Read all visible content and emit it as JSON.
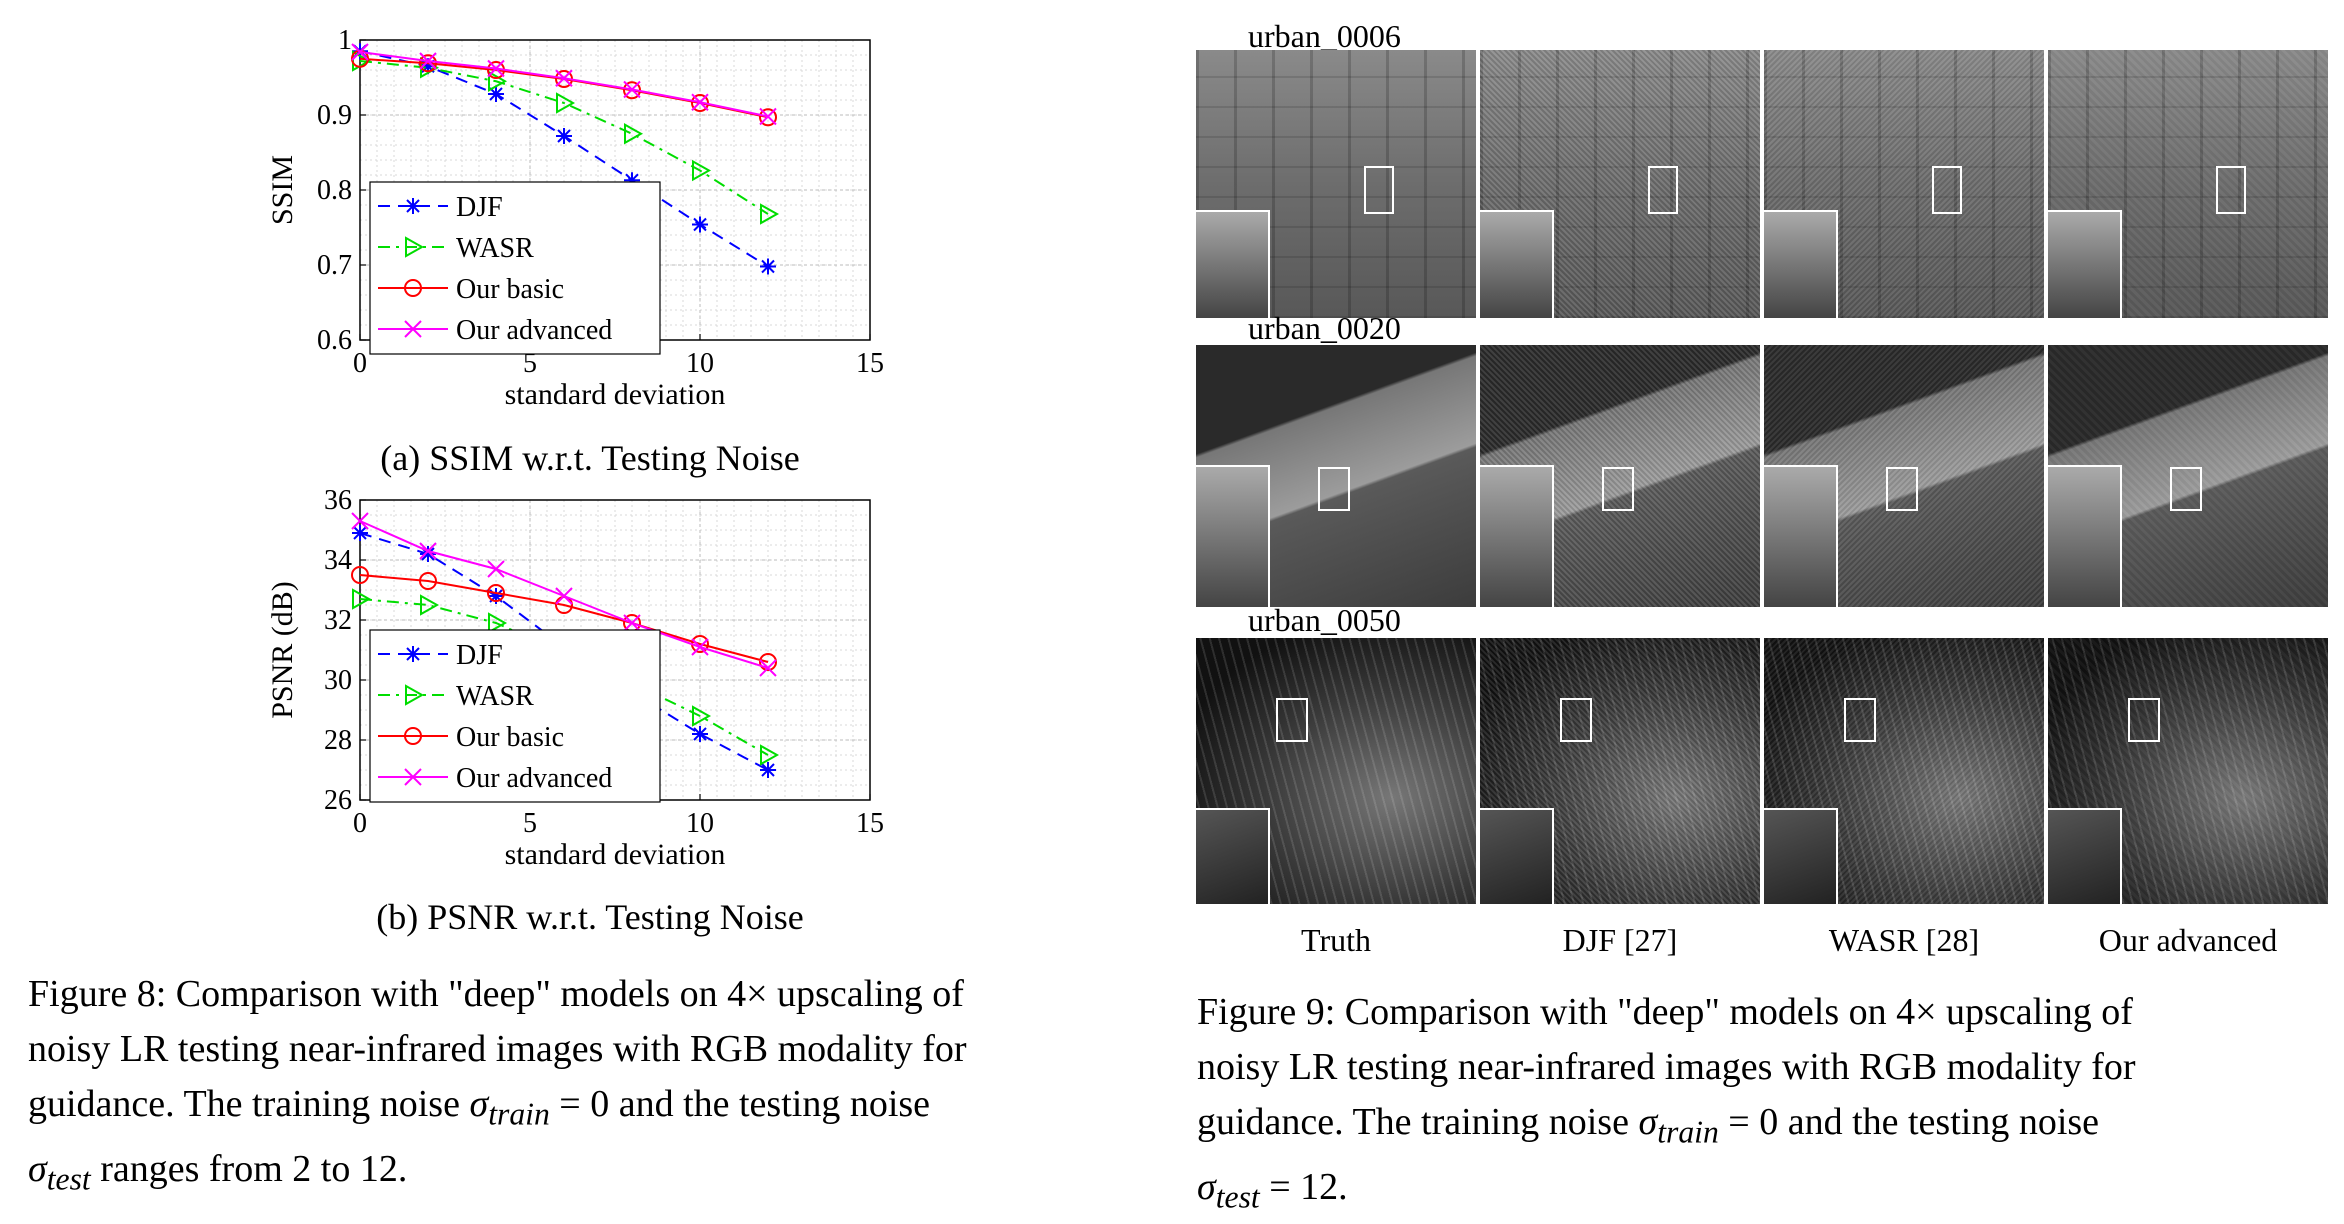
{
  "chart_data": [
    {
      "type": "line",
      "title": "",
      "xlabel": "standard deviation",
      "ylabel": "SSIM",
      "xlim": [
        0,
        15
      ],
      "ylim": [
        0.6,
        1
      ],
      "xticks": [
        "0",
        "5",
        "10",
        "15"
      ],
      "yticks": [
        "0.6",
        "0.7",
        "0.8",
        "0.9",
        "1"
      ],
      "grid": true,
      "legend_position": "bottom-left",
      "x": [
        0,
        2,
        4,
        6,
        8,
        10,
        12
      ],
      "series": [
        {
          "name": "DJF",
          "color": "#0000ff",
          "marker": "asterisk",
          "dash": "dashed",
          "values": [
            0.985,
            0.965,
            0.928,
            0.872,
            0.813,
            0.754,
            0.698
          ]
        },
        {
          "name": "WASR",
          "color": "#00dd00",
          "marker": "triangle-right",
          "dash": "dash-dot",
          "values": [
            0.972,
            0.963,
            0.945,
            0.916,
            0.875,
            0.826,
            0.768
          ]
        },
        {
          "name": "Our basic",
          "color": "#ff0000",
          "marker": "circle",
          "dash": "solid",
          "values": [
            0.975,
            0.969,
            0.96,
            0.948,
            0.933,
            0.916,
            0.897
          ]
        },
        {
          "name": "Our advanced",
          "color": "#ff00ff",
          "marker": "x",
          "dash": "solid",
          "values": [
            0.984,
            0.972,
            0.962,
            0.949,
            0.934,
            0.917,
            0.898
          ]
        }
      ]
    },
    {
      "type": "line",
      "title": "",
      "xlabel": "standard deviation",
      "ylabel": "PSNR (dB)",
      "xlim": [
        0,
        15
      ],
      "ylim": [
        26,
        36
      ],
      "xticks": [
        "0",
        "5",
        "10",
        "15"
      ],
      "yticks": [
        "26",
        "28",
        "30",
        "32",
        "34",
        "36"
      ],
      "grid": true,
      "legend_position": "bottom-left",
      "x": [
        0,
        2,
        4,
        6,
        8,
        10,
        12
      ],
      "series": [
        {
          "name": "DJF",
          "color": "#0000ff",
          "marker": "asterisk",
          "dash": "dashed",
          "values": [
            34.9,
            34.2,
            32.8,
            31.1,
            29.6,
            28.2,
            27.0
          ]
        },
        {
          "name": "WASR",
          "color": "#00dd00",
          "marker": "triangle-right",
          "dash": "dash-dot",
          "values": [
            32.7,
            32.5,
            31.9,
            30.9,
            29.9,
            28.8,
            27.5
          ]
        },
        {
          "name": "Our basic",
          "color": "#ff0000",
          "marker": "circle",
          "dash": "solid",
          "values": [
            33.5,
            33.3,
            32.9,
            32.5,
            31.9,
            31.2,
            30.6
          ]
        },
        {
          "name": "Our advanced",
          "color": "#ff00ff",
          "marker": "x",
          "dash": "solid",
          "values": [
            35.3,
            34.3,
            33.7,
            32.8,
            31.9,
            31.1,
            30.4
          ]
        }
      ]
    }
  ],
  "left": {
    "subcaption_a": "(a) SSIM w.r.t. Testing Noise",
    "subcaption_b": "(b) PSNR w.r.t. Testing Noise",
    "caption_lines": [
      "Figure 8: Comparison with \"deep\" models on 4× upscaling of",
      "noisy LR testing near-infrared images with RGB modality for",
      "guidance. The training noise σ",
      "σ",
      " ranges from 2 to 12."
    ],
    "caption": {
      "line1": "Figure 8: Comparison with \"deep\" models on 4× upscaling of",
      "line2": "noisy LR testing near-infrared images with RGB modality for",
      "line3_pre": "guidance. The training noise ",
      "sigma": "σ",
      "train_sub": "train",
      "eq_zero": " = 0 and the testing noise",
      "test_sub": "test",
      "line4_post": " ranges from 2 to 12."
    }
  },
  "right": {
    "scenes": [
      "urban_0006",
      "urban_0020",
      "urban_0050"
    ],
    "columns": [
      "Truth",
      "DJF [27]",
      "WASR [28]",
      "Our advanced"
    ],
    "caption": {
      "line1": "Figure 9: Comparison with \"deep\" models on 4× upscaling of",
      "line2": "noisy LR testing near-infrared images with RGB modality for",
      "line3_pre": "guidance. The training noise ",
      "sigma": "σ",
      "train_sub": "train",
      "eq_zero": " = 0 and the testing noise",
      "test_sub": "test",
      "line4_post": " = 12."
    }
  }
}
